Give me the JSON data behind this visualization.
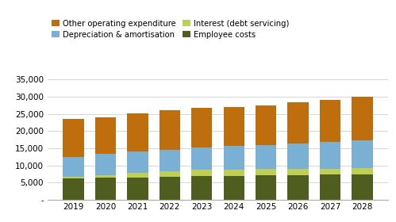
{
  "years": [
    2019,
    2020,
    2021,
    2022,
    2023,
    2024,
    2025,
    2026,
    2027,
    2028
  ],
  "employee_costs": [
    6200,
    6400,
    6500,
    6700,
    6900,
    7000,
    7100,
    7200,
    7300,
    7400
  ],
  "interest_debt": [
    600,
    700,
    1300,
    1700,
    1800,
    1800,
    1800,
    1800,
    1800,
    1800
  ],
  "depreciation_amort": [
    5700,
    6300,
    6200,
    6200,
    6600,
    7000,
    7100,
    7500,
    7800,
    8100
  ],
  "other_opex": [
    11000,
    10700,
    11200,
    11400,
    11400,
    11300,
    11500,
    12000,
    12300,
    12700
  ],
  "colors": {
    "employee_costs": "#4f5e1e",
    "interest_debt": "#bfce54",
    "depreciation_amort": "#7ab0d4",
    "other_opex": "#bf6e0e"
  },
  "legend_labels": {
    "other_opex": "Other operating expenditure",
    "depreciation_amort": "Depreciation & amortisation",
    "interest_debt": "Interest (debt servicing)",
    "employee_costs": "Employee costs"
  },
  "ylim": [
    0,
    37500
  ],
  "yticks": [
    0,
    5000,
    10000,
    15000,
    20000,
    25000,
    30000,
    35000
  ],
  "background_color": "#ffffff",
  "bar_width": 0.65,
  "figsize": [
    4.99,
    2.8
  ],
  "dpi": 100
}
